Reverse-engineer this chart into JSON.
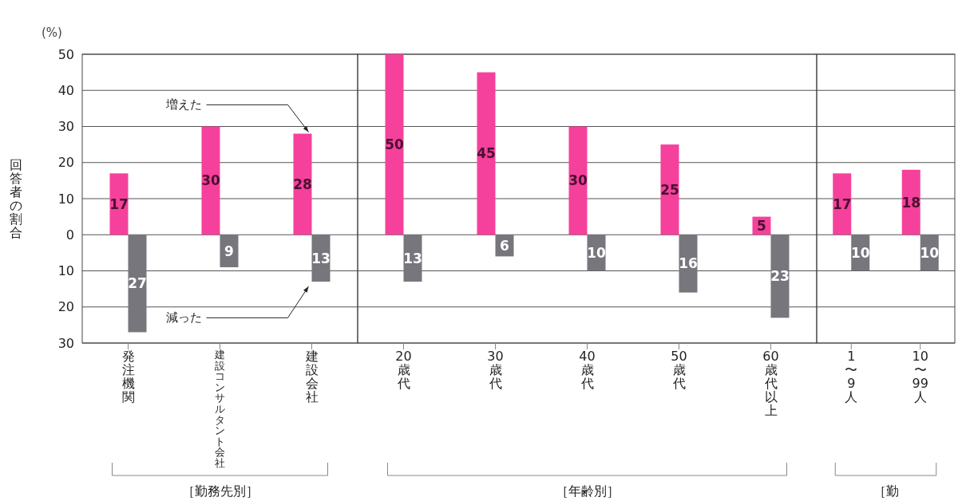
{
  "chart_data": [
    {
      "type": "bar",
      "data_labels": true,
      "categories": [
        "発注機関",
        "建設コンサルタント会社",
        "建設会社"
      ],
      "ylabel": "回答者の割合",
      "xlabel": "［勤務先別］",
      "annotations": [
        "(%)"
      ],
      "ylim": [
        -30,
        50
      ],
      "yticks": [
        50,
        40,
        30,
        20,
        10,
        0,
        {
          "value": -10,
          "label": "10"
        },
        {
          "value": -20,
          "label": "20"
        },
        {
          "value": -30,
          "label": "30"
        }
      ],
      "grid": "y",
      "series": [
        {
          "name": "増えた",
          "color": "#f5419b",
          "values": [
            17,
            30,
            28
          ]
        },
        {
          "name": "減った",
          "color": "#77767c",
          "values": [
            27,
            9,
            13
          ],
          "base": [
            -27,
            -9,
            -13
          ]
        }
      ]
    },
    {
      "type": "bar",
      "data_labels": true,
      "categories": [
        "20歳代",
        "30歳代",
        "40歳代",
        "50歳代",
        "60歳代以上"
      ],
      "xlabel": "［年齢別］",
      "ylim": [
        -30,
        50
      ],
      "yticks": [
        {
          "value": 50,
          "label": null
        },
        {
          "value": 40,
          "label": null
        },
        {
          "value": 30,
          "label": null
        },
        {
          "value": 20,
          "label": null
        },
        {
          "value": 10,
          "label": null
        },
        {
          "value": 0,
          "label": null
        },
        {
          "value": -10,
          "label": null
        },
        {
          "value": -20,
          "label": null
        },
        {
          "value": -30,
          "label": null
        }
      ],
      "grid": "y",
      "tick_labels": "x",
      "series": [
        {
          "color": "#f5419b",
          "values": [
            50,
            45,
            30,
            25,
            5
          ]
        },
        {
          "color": "#77767c",
          "values": [
            13,
            6,
            10,
            16,
            23
          ],
          "base": [
            -13,
            -6,
            -10,
            -16,
            -23
          ]
        }
      ]
    },
    {
      "type": "bar",
      "data_labels": true,
      "categories": [
        "1〜9人",
        "10〜99人"
      ],
      "xlabel": "［勤",
      "ylim": [
        -30,
        50
      ],
      "yticks": [
        {
          "value": 50,
          "label": null
        },
        {
          "value": 40,
          "label": null
        },
        {
          "value": 30,
          "label": null
        },
        {
          "value": 20,
          "label": null
        },
        {
          "value": 10,
          "label": null
        },
        {
          "value": 0,
          "label": null
        },
        {
          "value": -10,
          "label": null
        },
        {
          "value": -20,
          "label": null
        },
        {
          "value": -30,
          "label": null
        }
      ],
      "grid": "y",
      "tick_labels": "x",
      "series": [
        {
          "color": "#f5419b",
          "values": [
            17,
            18
          ]
        },
        {
          "color": "#77767c",
          "values": [
            10,
            10
          ],
          "base": [
            -10,
            -10
          ]
        }
      ]
    }
  ]
}
